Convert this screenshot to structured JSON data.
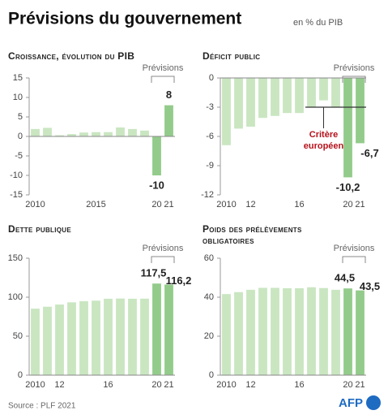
{
  "header": {
    "title": "Prévisions du gouvernement",
    "subtitle": "en % du PIB"
  },
  "chart_data": [
    {
      "type": "bar",
      "title": "Croissance, évolution du PIB",
      "annotation": "Prévisions",
      "categories": [
        "2010",
        null,
        null,
        null,
        null,
        "2015",
        null,
        null,
        null,
        null,
        "20",
        "21"
      ],
      "values": [
        1.9,
        2.2,
        0.3,
        0.6,
        1.0,
        1.1,
        1.1,
        2.3,
        1.9,
        1.5,
        -10,
        8
      ],
      "value_labels": [
        null,
        null,
        null,
        null,
        null,
        null,
        null,
        null,
        null,
        null,
        "-10",
        "8"
      ],
      "colors": [
        "#c9e6c1",
        "#c9e6c1",
        "#c9e6c1",
        "#c9e6c1",
        "#c9e6c1",
        "#c9e6c1",
        "#c9e6c1",
        "#c9e6c1",
        "#c9e6c1",
        "#c9e6c1",
        "#93cb8b",
        "#93cb8b"
      ],
      "ylim": [
        -15,
        15
      ],
      "yticks": [
        15,
        10,
        5,
        0,
        -5,
        -10,
        -15
      ]
    },
    {
      "type": "bar",
      "title": "Déficit public",
      "annotation": "Prévisions",
      "categories": [
        "2010",
        null,
        "12",
        null,
        null,
        null,
        "16",
        null,
        null,
        null,
        "20",
        "21"
      ],
      "values": [
        -6.9,
        -5.2,
        -5.0,
        -4.1,
        -3.9,
        -3.6,
        -3.6,
        -3.0,
        -2.3,
        -3.0,
        -10.2,
        -6.7
      ],
      "value_labels": [
        null,
        null,
        null,
        null,
        null,
        null,
        null,
        null,
        null,
        null,
        "-10,2",
        "-6,7"
      ],
      "colors": [
        "#c9e6c1",
        "#c9e6c1",
        "#c9e6c1",
        "#c9e6c1",
        "#c9e6c1",
        "#c9e6c1",
        "#c9e6c1",
        "#c9e6c1",
        "#c9e6c1",
        "#c9e6c1",
        "#93cb8b",
        "#93cb8b"
      ],
      "ylim": [
        -12,
        0
      ],
      "yticks": [
        0,
        -3,
        -6,
        -9,
        -12
      ],
      "threshold": -3,
      "threshold_label": [
        "Critère",
        "européen"
      ],
      "threshold_color": "#b5121b"
    },
    {
      "type": "bar",
      "title": "Dette publique",
      "annotation": "Prévisions",
      "categories": [
        "2010",
        null,
        "12",
        null,
        null,
        null,
        "16",
        null,
        null,
        null,
        "20",
        "21"
      ],
      "values": [
        85.3,
        87.8,
        90.6,
        93.4,
        94.9,
        95.6,
        98.0,
        98.3,
        98.0,
        98.1,
        117.5,
        116.2
      ],
      "value_labels": [
        null,
        null,
        null,
        null,
        null,
        null,
        null,
        null,
        null,
        null,
        "117,5",
        "116,2"
      ],
      "colors": [
        "#c9e6c1",
        "#c9e6c1",
        "#c9e6c1",
        "#c9e6c1",
        "#c9e6c1",
        "#c9e6c1",
        "#c9e6c1",
        "#c9e6c1",
        "#c9e6c1",
        "#c9e6c1",
        "#93cb8b",
        "#93cb8b"
      ],
      "ylim": [
        0,
        150
      ],
      "yticks": [
        0,
        50,
        100,
        150
      ]
    },
    {
      "type": "bar",
      "title": [
        "Poids des prélèvements",
        "obligatoires"
      ],
      "annotation": "Prévisions",
      "categories": [
        "2010",
        null,
        "12",
        null,
        null,
        null,
        "16",
        null,
        null,
        null,
        "20",
        "21"
      ],
      "values": [
        41.6,
        42.6,
        43.8,
        44.8,
        44.8,
        44.6,
        44.6,
        45.1,
        44.7,
        43.8,
        44.5,
        43.5
      ],
      "value_labels": [
        null,
        null,
        null,
        null,
        null,
        null,
        null,
        null,
        null,
        null,
        "44,5",
        "43,5"
      ],
      "colors": [
        "#c9e6c1",
        "#c9e6c1",
        "#c9e6c1",
        "#c9e6c1",
        "#c9e6c1",
        "#c9e6c1",
        "#c9e6c1",
        "#c9e6c1",
        "#c9e6c1",
        "#c9e6c1",
        "#93cb8b",
        "#93cb8b"
      ],
      "ylim": [
        0,
        60
      ],
      "yticks": [
        0,
        20,
        40,
        60
      ]
    }
  ],
  "footer": {
    "source": "Source : PLF 2021",
    "logo": "AFP"
  }
}
